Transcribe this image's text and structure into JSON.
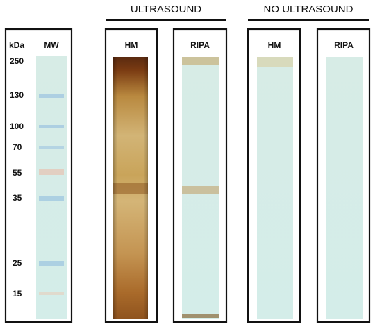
{
  "groups": [
    {
      "label": "ULTRASOUND"
    },
    {
      "label": "NO ULTRASOUND"
    }
  ],
  "unit": "kDa",
  "lanes": [
    {
      "label": "MW"
    },
    {
      "label": "HM"
    },
    {
      "label": "RIPA"
    },
    {
      "label": "HM"
    },
    {
      "label": "RIPA"
    }
  ],
  "markers": [
    250,
    130,
    100,
    70,
    55,
    35,
    25,
    15
  ]
}
